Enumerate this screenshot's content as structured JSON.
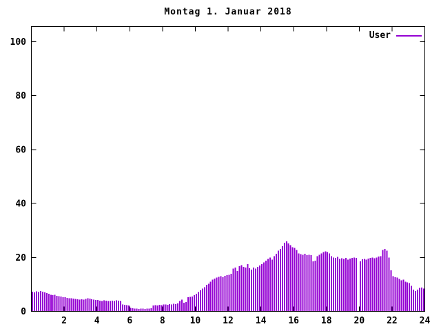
{
  "title": "Montag 1. Januar 2018",
  "legend": {
    "label": "User"
  },
  "colors": {
    "series": "#9400d3",
    "axis": "#000000",
    "background": "#ffffff"
  },
  "chart_data": {
    "type": "bar",
    "title": "Montag 1. Januar 2018",
    "xlabel": "",
    "ylabel": "",
    "series_name": "User",
    "legend_position": "top-right-inside",
    "grid": false,
    "xlim": [
      0,
      24
    ],
    "ylim": [
      0,
      105.6
    ],
    "x_ticks": [
      2,
      4,
      6,
      8,
      10,
      12,
      14,
      16,
      18,
      20,
      22,
      24
    ],
    "y_ticks": [
      0,
      20,
      40,
      60,
      80,
      100
    ],
    "x_unit": "hour-of-day",
    "x_start": 0.0625,
    "x_step": 0.125,
    "values": [
      7.3,
      7.0,
      7.4,
      7.2,
      7.5,
      7.3,
      7.0,
      6.8,
      6.5,
      6.2,
      6.0,
      6.1,
      5.8,
      5.6,
      5.5,
      5.3,
      5.2,
      5.0,
      4.8,
      4.9,
      4.7,
      4.6,
      4.5,
      4.4,
      4.5,
      4.3,
      4.6,
      4.8,
      4.7,
      4.5,
      4.3,
      4.2,
      4.2,
      4.0,
      3.9,
      4.1,
      4.0,
      3.8,
      3.9,
      4.0,
      3.9,
      4.1,
      4.0,
      3.8,
      2.6,
      2.4,
      2.3,
      2.2,
      1.3,
      1.1,
      1.0,
      1.0,
      0.9,
      1.0,
      1.0,
      0.9,
      1.0,
      1.0,
      1.1,
      2.2,
      2.3,
      2.2,
      2.4,
      2.3,
      2.5,
      2.6,
      2.4,
      2.7,
      2.6,
      2.8,
      2.7,
      3.0,
      3.8,
      4.3,
      3.2,
      3.4,
      5.2,
      5.4,
      5.5,
      6.0,
      6.5,
      7.2,
      7.8,
      8.5,
      9.0,
      9.8,
      10.2,
      11.0,
      11.8,
      12.2,
      12.5,
      12.8,
      13.0,
      12.7,
      13.2,
      13.4,
      13.5,
      14.0,
      15.8,
      16.2,
      15.0,
      16.8,
      17.1,
      16.5,
      16.3,
      17.5,
      16.0,
      15.5,
      16.2,
      15.8,
      16.5,
      17.0,
      17.5,
      18.2,
      18.8,
      19.5,
      20.0,
      19.2,
      20.5,
      21.4,
      22.5,
      23.2,
      24.2,
      25.5,
      26.0,
      25.2,
      24.5,
      23.8,
      23.5,
      22.8,
      21.5,
      21.2,
      21.0,
      21.3,
      20.8,
      21.0,
      20.8,
      18.5,
      18.8,
      20.5,
      21.0,
      21.5,
      22.0,
      22.3,
      22.0,
      21.5,
      20.5,
      20.0,
      19.8,
      20.2,
      19.5,
      19.7,
      19.5,
      19.8,
      19.2,
      19.6,
      19.8,
      20.0,
      19.8,
      0.0,
      18.5,
      19.3,
      19.5,
      19.2,
      19.6,
      19.8,
      20.0,
      19.7,
      20.0,
      20.3,
      20.5,
      22.8,
      23.2,
      22.5,
      20.0,
      15.2,
      13.0,
      12.7,
      12.5,
      12.0,
      11.5,
      11.8,
      11.0,
      10.8,
      10.5,
      9.5,
      8.0,
      7.5,
      8.0,
      8.7,
      8.8,
      8.5
    ]
  }
}
